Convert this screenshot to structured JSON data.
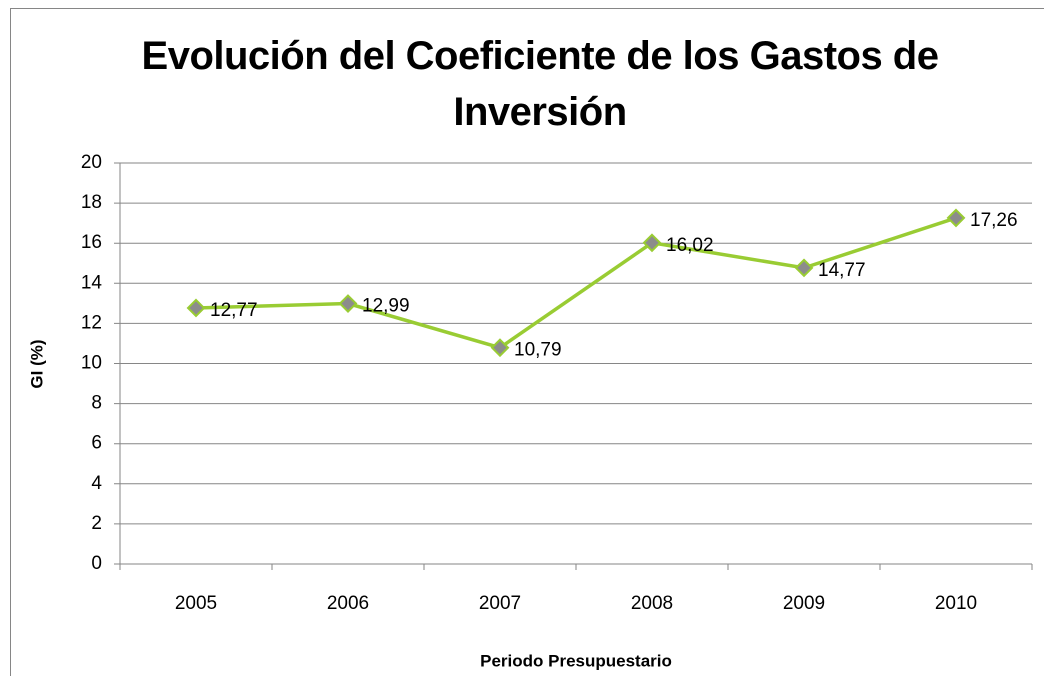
{
  "chart_data": {
    "type": "line",
    "title": "Evolución del Coeficiente de los Gastos de Inversión",
    "x_label": "Periodo Presupuestario",
    "y_label": "GI (%)",
    "categories": [
      "2005",
      "2006",
      "2007",
      "2008",
      "2009",
      "2010"
    ],
    "series": [
      {
        "name": "GI (%)",
        "color": "#99cc33",
        "marker_color": "#8c8c8c",
        "values": [
          12.77,
          12.99,
          10.79,
          16.02,
          14.77,
          17.26
        ],
        "value_labels": [
          "12,77",
          "12,99",
          "10,79",
          "16,02",
          "14,77",
          "17,26"
        ]
      }
    ],
    "ylim": [
      0,
      20
    ],
    "yticks": [
      0,
      2,
      4,
      6,
      8,
      10,
      12,
      14,
      16,
      18,
      20
    ],
    "grid": true
  }
}
